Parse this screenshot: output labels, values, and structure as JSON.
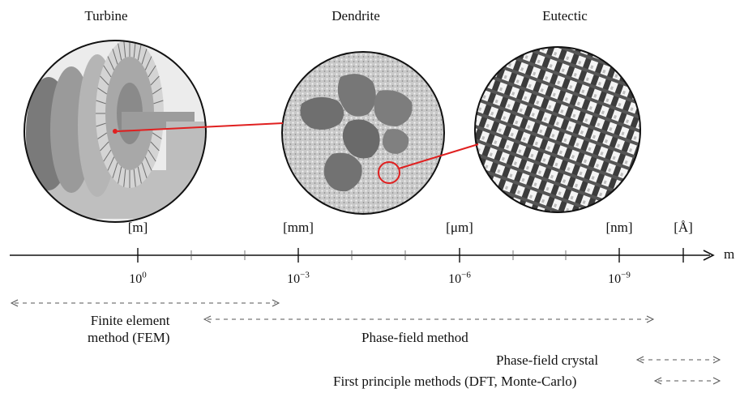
{
  "circles": [
    {
      "title": "Turbine"
    },
    {
      "title": "Dendrite"
    },
    {
      "title": "Eutectic"
    }
  ],
  "units": [
    "[m]",
    "[mm]",
    "[μm]",
    "[nm]",
    "[Å]"
  ],
  "ticks": [
    {
      "base": "10",
      "exp": "0"
    },
    {
      "base": "10",
      "exp": "−3"
    },
    {
      "base": "10",
      "exp": "−6"
    },
    {
      "base": "10",
      "exp": "−9"
    }
  ],
  "axis_unit": "m",
  "methods": {
    "fem_line1": "Finite element",
    "fem_line2": "method (FEM)",
    "phase_field": "Phase-field method",
    "pfc": "Phase-field crystal",
    "first_principle": "First principle methods (DFT, Monte-Carlo)"
  },
  "colors": {
    "connector": "#e02020",
    "axis": "#111111",
    "dashed": "#555555"
  }
}
